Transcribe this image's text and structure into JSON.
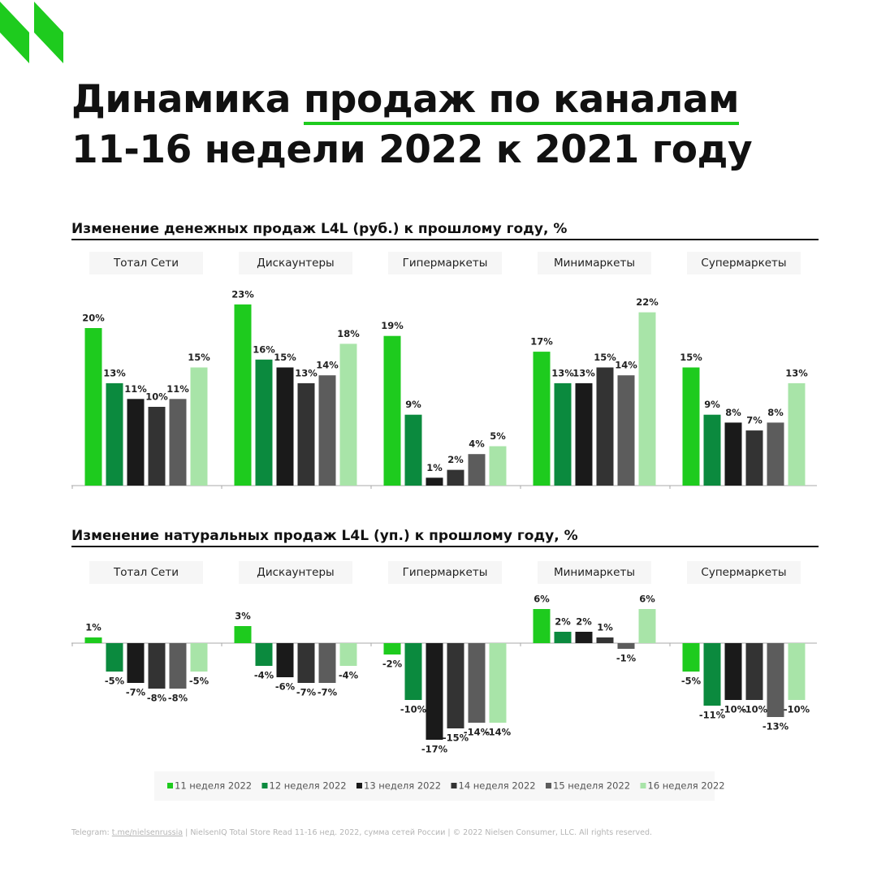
{
  "header": {
    "title_lead": "Динамика",
    "title_highlight": "продаж по каналам",
    "title_line2": "11-16 недели 2022 к 2021 году"
  },
  "chart_data": [
    {
      "type": "bar",
      "title": "Изменение денежных продаж L4L (руб.) к прошлому году, %",
      "categories": [
        "Тотал Сети",
        "Дискаунтеры",
        "Гипермаркеты",
        "Минимаркеты",
        "Супермаркеты"
      ],
      "series": [
        {
          "color": "#1ecb1e",
          "values": [
            20,
            23,
            19,
            17,
            15
          ],
          "value_labels": [
            "20%",
            "23%",
            "19%",
            "17%",
            "15%"
          ]
        },
        {
          "color": "#0b8a3e",
          "values": [
            13,
            16,
            9,
            13,
            9
          ],
          "value_labels": [
            "13%",
            "16%",
            "9%",
            "13%",
            "9%"
          ]
        },
        {
          "color": "#1a1a1a",
          "values": [
            11,
            15,
            1,
            13,
            8
          ],
          "value_labels": [
            "11%",
            "15%",
            "1%",
            "13%",
            "8%"
          ]
        },
        {
          "color": "#333333",
          "values": [
            10,
            13,
            2,
            15,
            7
          ],
          "value_labels": [
            "10%",
            "13%",
            "2%",
            "15%",
            "7%"
          ]
        },
        {
          "color": "#5c5c5c",
          "values": [
            11,
            14,
            4,
            14,
            8
          ],
          "value_labels": [
            "11%",
            "14%",
            "4%",
            "14%",
            "8%"
          ]
        },
        {
          "color": "#a8e4a8",
          "values": [
            15,
            18,
            5,
            22,
            13
          ],
          "value_labels": [
            "15%",
            "18%",
            "5%",
            "22%",
            "13%"
          ]
        }
      ]
    },
    {
      "type": "bar",
      "title": "Изменение натуральных продаж L4L (уп.) к прошлому году, %",
      "categories": [
        "Тотал Сети",
        "Дискаунтеры",
        "Гипермаркеты",
        "Минимаркеты",
        "Супермаркеты"
      ],
      "series": [
        {
          "name": "11 неделя 2022",
          "color": "#1ecb1e",
          "values": [
            1,
            3,
            -2,
            6,
            -5
          ],
          "value_labels": [
            "1%",
            "3%",
            "-2%",
            "6%",
            "-5%"
          ]
        },
        {
          "name": "12 неделя 2022",
          "color": "#0b8a3e",
          "values": [
            -5,
            -4,
            -10,
            2,
            -11
          ],
          "value_labels": [
            "-5%",
            "-4%",
            "-10%",
            "2%",
            "-11%"
          ]
        },
        {
          "name": "13 неделя 2022",
          "color": "#1a1a1a",
          "values": [
            -7,
            -6,
            -17,
            2,
            -10
          ],
          "value_labels": [
            "-7%",
            "-6%",
            "-17%",
            "2%",
            "-10%"
          ]
        },
        {
          "name": "14 неделя 2022",
          "color": "#333333",
          "values": [
            -8,
            -7,
            -15,
            1,
            -10
          ],
          "value_labels": [
            "-8%",
            "-7%",
            "-15%",
            "1%",
            "-10%"
          ]
        },
        {
          "name": "15 неделя 2022",
          "color": "#5c5c5c",
          "values": [
            -8,
            -7,
            -14,
            -1,
            -13
          ],
          "value_labels": [
            "-8%",
            "-7%",
            "-14%",
            "-1%",
            "-13%"
          ]
        },
        {
          "name": "16 неделя 2022",
          "color": "#a8e4a8",
          "values": [
            -5,
            -4,
            -14,
            6,
            -10
          ],
          "value_labels": [
            "-5%",
            "-4%",
            "-14%",
            "6%",
            "-10%"
          ]
        }
      ],
      "legend": "bottom"
    }
  ],
  "footer": {
    "prefix": "Telegram:",
    "link": "t.me/nielsenrussia",
    "source": "|  NielsenIQ Total Store Read 11-16 нед. 2022, сумма сетей России  |  © 2022 Nielsen Consumer, LLC. All rights reserved."
  }
}
